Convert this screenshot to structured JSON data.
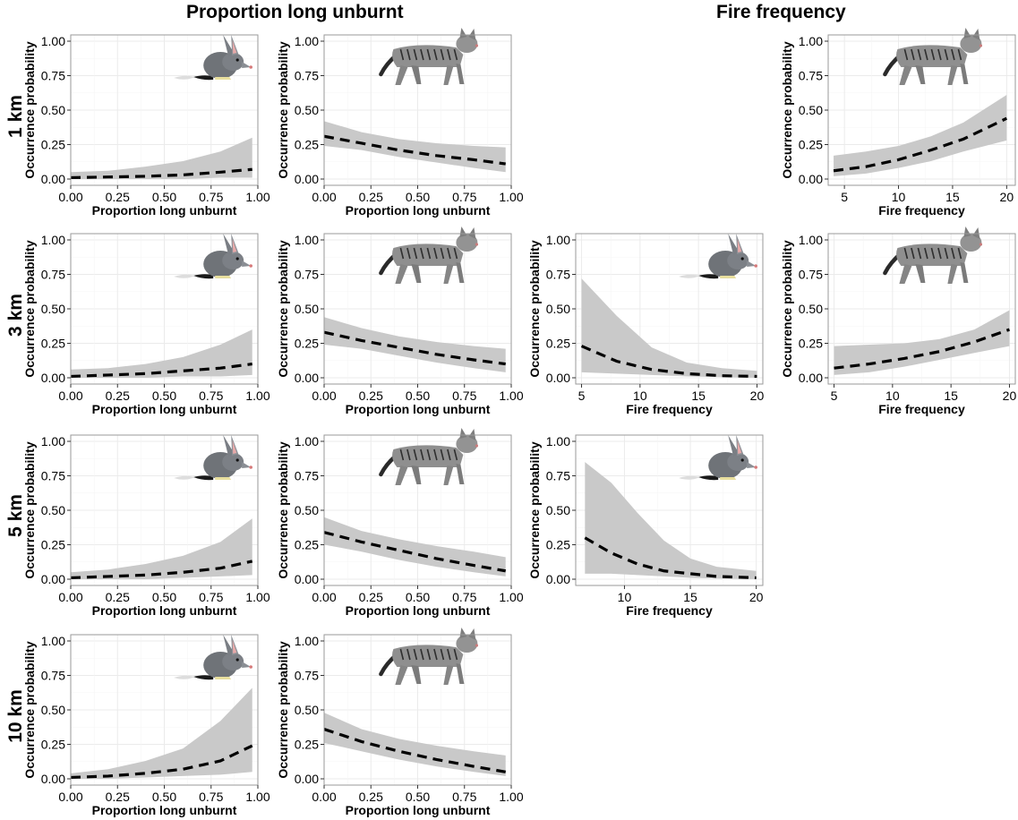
{
  "headers": {
    "col_left": "Proportion long unburnt",
    "col_right": "Fire frequency",
    "rows": [
      "1 km",
      "3 km",
      "5 km",
      "10 km"
    ]
  },
  "colors": {
    "ribbon": "#c9c9c9",
    "line": "#000000",
    "grid": "#ebebeb",
    "panel_border": "#9a9a9a"
  },
  "chart_data": [
    {
      "type": "line",
      "id": "1km-plu-bandicoot",
      "scale": "1 km",
      "species": "bandicoot",
      "xlabel": "Proportion long unburnt",
      "ylabel": "Occurrence probability",
      "xlim": [
        0,
        1
      ],
      "ylim": [
        0,
        1
      ],
      "xticks": [
        "0.00",
        "0.25",
        "0.50",
        "0.75",
        "1.00"
      ],
      "xtick_values": [
        0,
        0.25,
        0.5,
        0.75,
        1
      ],
      "yticks": [
        "0.00",
        "0.25",
        "0.50",
        "0.75",
        "1.00"
      ],
      "x": [
        0,
        0.2,
        0.4,
        0.6,
        0.8,
        0.97
      ],
      "y": [
        0.01,
        0.015,
        0.02,
        0.03,
        0.05,
        0.07
      ],
      "lower": [
        0.0,
        0.0,
        0.0,
        0.0,
        0.01,
        0.01
      ],
      "upper": [
        0.05,
        0.06,
        0.09,
        0.13,
        0.2,
        0.3
      ]
    },
    {
      "type": "line",
      "id": "1km-plu-cat",
      "scale": "1 km",
      "species": "cat",
      "xlabel": "Proportion long unburnt",
      "ylabel": "Occurrence probability",
      "xlim": [
        0,
        1
      ],
      "ylim": [
        0,
        1
      ],
      "xticks": [
        "0.00",
        "0.25",
        "0.50",
        "0.75",
        "1.00"
      ],
      "xtick_values": [
        0,
        0.25,
        0.5,
        0.75,
        1
      ],
      "yticks": [
        "0.00",
        "0.25",
        "0.50",
        "0.75",
        "1.00"
      ],
      "x": [
        0,
        0.2,
        0.4,
        0.6,
        0.8,
        0.97
      ],
      "y": [
        0.31,
        0.26,
        0.21,
        0.17,
        0.14,
        0.11
      ],
      "lower": [
        0.24,
        0.21,
        0.16,
        0.12,
        0.08,
        0.05
      ],
      "upper": [
        0.42,
        0.34,
        0.29,
        0.26,
        0.24,
        0.23
      ]
    },
    {
      "type": "line",
      "id": "1km-ff-cat",
      "scale": "1 km",
      "species": "cat",
      "xlabel": "Fire frequency",
      "ylabel": "Occurrence probability",
      "xlim": [
        3.5,
        20.8
      ],
      "ylim": [
        0,
        1
      ],
      "xticks": [
        "5",
        "10",
        "15",
        "20"
      ],
      "xtick_values": [
        5,
        10,
        15,
        20
      ],
      "yticks": [
        "0.00",
        "0.25",
        "0.50",
        "0.75",
        "1.00"
      ],
      "x": [
        4,
        7,
        10,
        13,
        16,
        20
      ],
      "y": [
        0.06,
        0.09,
        0.14,
        0.21,
        0.29,
        0.44
      ],
      "lower": [
        0.02,
        0.04,
        0.08,
        0.13,
        0.2,
        0.28
      ],
      "upper": [
        0.17,
        0.2,
        0.24,
        0.31,
        0.41,
        0.61
      ]
    },
    {
      "type": "line",
      "id": "3km-plu-bandicoot",
      "scale": "3 km",
      "species": "bandicoot",
      "xlabel": "Proportion long unburnt",
      "ylabel": "Occurrence probability",
      "xlim": [
        0,
        1
      ],
      "ylim": [
        0,
        1
      ],
      "xticks": [
        "0.00",
        "0.25",
        "0.50",
        "0.75",
        "1.00"
      ],
      "xtick_values": [
        0,
        0.25,
        0.5,
        0.75,
        1
      ],
      "yticks": [
        "0.00",
        "0.25",
        "0.50",
        "0.75",
        "1.00"
      ],
      "x": [
        0,
        0.2,
        0.4,
        0.6,
        0.8,
        0.97
      ],
      "y": [
        0.01,
        0.02,
        0.03,
        0.05,
        0.07,
        0.1
      ],
      "lower": [
        0.0,
        0.0,
        0.0,
        0.01,
        0.01,
        0.02
      ],
      "upper": [
        0.06,
        0.07,
        0.1,
        0.15,
        0.24,
        0.35
      ]
    },
    {
      "type": "line",
      "id": "3km-plu-cat",
      "scale": "3 km",
      "species": "cat",
      "xlabel": "Proportion long unburnt",
      "ylabel": "Occurrence probability",
      "xlim": [
        0,
        1
      ],
      "ylim": [
        0,
        1
      ],
      "xticks": [
        "0.00",
        "0.25",
        "0.50",
        "0.75",
        "1.00"
      ],
      "xtick_values": [
        0,
        0.25,
        0.5,
        0.75,
        1
      ],
      "yticks": [
        "0.00",
        "0.25",
        "0.50",
        "0.75",
        "1.00"
      ],
      "x": [
        0,
        0.2,
        0.4,
        0.6,
        0.8,
        0.97
      ],
      "y": [
        0.33,
        0.27,
        0.22,
        0.17,
        0.13,
        0.1
      ],
      "lower": [
        0.24,
        0.21,
        0.16,
        0.11,
        0.07,
        0.04
      ],
      "upper": [
        0.44,
        0.36,
        0.3,
        0.26,
        0.23,
        0.21
      ]
    },
    {
      "type": "line",
      "id": "3km-ff-bandicoot",
      "scale": "3 km",
      "species": "bandicoot",
      "xlabel": "Fire frequency",
      "ylabel": "Occurrence probability",
      "xlim": [
        4.5,
        20.5
      ],
      "ylim": [
        0,
        1
      ],
      "xticks": [
        "5",
        "10",
        "15",
        "20"
      ],
      "xtick_values": [
        5,
        10,
        15,
        20
      ],
      "yticks": [
        "0.00",
        "0.25",
        "0.50",
        "0.75",
        "1.00"
      ],
      "x": [
        5,
        8,
        11,
        14,
        17,
        20
      ],
      "y": [
        0.23,
        0.12,
        0.06,
        0.03,
        0.015,
        0.01
      ],
      "lower": [
        0.04,
        0.03,
        0.02,
        0.01,
        0.005,
        0.0
      ],
      "upper": [
        0.72,
        0.45,
        0.22,
        0.11,
        0.07,
        0.05
      ]
    },
    {
      "type": "line",
      "id": "3km-ff-cat",
      "scale": "3 km",
      "species": "cat",
      "xlabel": "Fire frequency",
      "ylabel": "Occurrence probability",
      "xlim": [
        4.5,
        20.5
      ],
      "ylim": [
        0,
        1
      ],
      "xticks": [
        "5",
        "10",
        "15",
        "20"
      ],
      "xtick_values": [
        5,
        10,
        15,
        20
      ],
      "yticks": [
        "0.00",
        "0.25",
        "0.50",
        "0.75",
        "1.00"
      ],
      "x": [
        5,
        8,
        11,
        14,
        17,
        20
      ],
      "y": [
        0.07,
        0.1,
        0.14,
        0.19,
        0.26,
        0.35
      ],
      "lower": [
        0.02,
        0.04,
        0.08,
        0.13,
        0.18,
        0.23
      ],
      "upper": [
        0.23,
        0.24,
        0.25,
        0.28,
        0.35,
        0.49
      ]
    },
    {
      "type": "line",
      "id": "5km-plu-bandicoot",
      "scale": "5 km",
      "species": "bandicoot",
      "xlabel": "Proportion long unburnt",
      "ylabel": "Occurrence probability",
      "xlim": [
        0,
        1
      ],
      "ylim": [
        0,
        1
      ],
      "xticks": [
        "0.00",
        "0.25",
        "0.50",
        "0.75",
        "1.00"
      ],
      "xtick_values": [
        0,
        0.25,
        0.5,
        0.75,
        1
      ],
      "yticks": [
        "0.00",
        "0.25",
        "0.50",
        "0.75",
        "1.00"
      ],
      "x": [
        0,
        0.2,
        0.4,
        0.6,
        0.8,
        0.97
      ],
      "y": [
        0.01,
        0.02,
        0.03,
        0.05,
        0.08,
        0.13
      ],
      "lower": [
        0.0,
        0.0,
        0.0,
        0.01,
        0.02,
        0.03
      ],
      "upper": [
        0.05,
        0.07,
        0.11,
        0.17,
        0.27,
        0.44
      ]
    },
    {
      "type": "line",
      "id": "5km-plu-cat",
      "scale": "5 km",
      "species": "cat",
      "xlabel": "Proportion long unburnt",
      "ylabel": "Occurrence probability",
      "xlim": [
        0,
        1
      ],
      "ylim": [
        0,
        1
      ],
      "xticks": [
        "0.00",
        "0.25",
        "0.50",
        "0.75",
        "1.00"
      ],
      "xtick_values": [
        0,
        0.25,
        0.5,
        0.75,
        1
      ],
      "yticks": [
        "0.00",
        "0.25",
        "0.50",
        "0.75",
        "1.00"
      ],
      "x": [
        0,
        0.2,
        0.4,
        0.6,
        0.8,
        0.97
      ],
      "y": [
        0.34,
        0.27,
        0.21,
        0.15,
        0.1,
        0.06
      ],
      "lower": [
        0.25,
        0.2,
        0.14,
        0.09,
        0.05,
        0.02
      ],
      "upper": [
        0.45,
        0.35,
        0.29,
        0.24,
        0.2,
        0.16
      ]
    },
    {
      "type": "line",
      "id": "5km-ff-bandicoot",
      "scale": "5 km",
      "species": "bandicoot",
      "xlabel": "Fire frequency",
      "ylabel": "Occurrence probability",
      "xlim": [
        6.3,
        20.5
      ],
      "ylim": [
        0,
        1
      ],
      "xticks": [
        "10",
        "15",
        "20"
      ],
      "xtick_values": [
        10,
        15,
        20
      ],
      "yticks": [
        "0.00",
        "0.25",
        "0.50",
        "0.75",
        "1.00"
      ],
      "x": [
        7,
        9,
        11,
        13,
        15,
        17,
        20
      ],
      "y": [
        0.3,
        0.19,
        0.11,
        0.06,
        0.04,
        0.02,
        0.01
      ],
      "lower": [
        0.04,
        0.04,
        0.03,
        0.02,
        0.01,
        0.005,
        0.0
      ],
      "upper": [
        0.85,
        0.7,
        0.48,
        0.28,
        0.15,
        0.09,
        0.06
      ]
    },
    {
      "type": "line",
      "id": "10km-plu-bandicoot",
      "scale": "10 km",
      "species": "bandicoot",
      "xlabel": "Proportion long unburnt",
      "ylabel": "Occurrence probability",
      "xlim": [
        0,
        1
      ],
      "ylim": [
        0,
        1
      ],
      "xticks": [
        "0.00",
        "0.25",
        "0.50",
        "0.75",
        "1.00"
      ],
      "xtick_values": [
        0,
        0.25,
        0.5,
        0.75,
        1
      ],
      "yticks": [
        "0.00",
        "0.25",
        "0.50",
        "0.75",
        "1.00"
      ],
      "x": [
        0,
        0.2,
        0.4,
        0.6,
        0.8,
        0.97
      ],
      "y": [
        0.01,
        0.02,
        0.04,
        0.07,
        0.13,
        0.24
      ],
      "lower": [
        0.0,
        0.0,
        0.01,
        0.02,
        0.03,
        0.05
      ],
      "upper": [
        0.04,
        0.07,
        0.13,
        0.22,
        0.42,
        0.66
      ]
    },
    {
      "type": "line",
      "id": "10km-plu-cat",
      "scale": "10 km",
      "species": "cat",
      "xlabel": "Proportion long unburnt",
      "ylabel": "Occurrence probability",
      "xlim": [
        0,
        1
      ],
      "ylim": [
        0,
        1
      ],
      "xticks": [
        "0.00",
        "0.25",
        "0.50",
        "0.75",
        "1.00"
      ],
      "xtick_values": [
        0,
        0.25,
        0.5,
        0.75,
        1
      ],
      "yticks": [
        "0.00",
        "0.25",
        "0.50",
        "0.75",
        "1.00"
      ],
      "x": [
        0,
        0.2,
        0.4,
        0.6,
        0.8,
        0.97
      ],
      "y": [
        0.36,
        0.27,
        0.2,
        0.14,
        0.09,
        0.05
      ],
      "lower": [
        0.26,
        0.2,
        0.14,
        0.09,
        0.05,
        0.02
      ],
      "upper": [
        0.48,
        0.36,
        0.29,
        0.24,
        0.2,
        0.17
      ]
    }
  ]
}
